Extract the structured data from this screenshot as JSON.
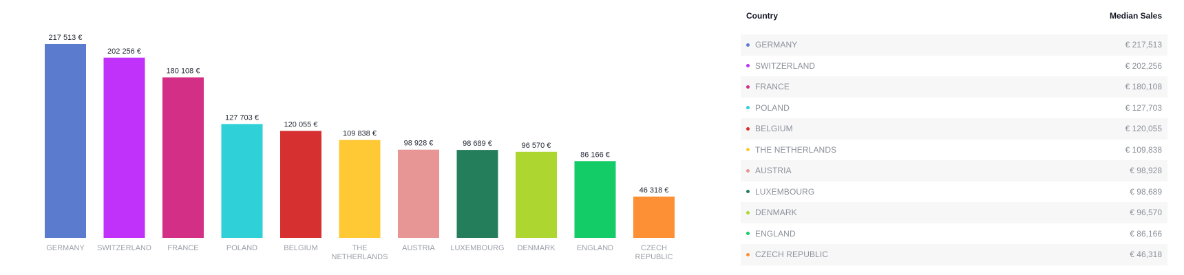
{
  "chart_data": {
    "type": "bar",
    "categories": [
      "GERMANY",
      "SWITZERLAND",
      "FRANCE",
      "POLAND",
      "BELGIUM",
      "THE NETHERLANDS",
      "AUSTRIA",
      "LUXEMBOURG",
      "DENMARK",
      "ENGLAND",
      "CZECH REPUBLIC"
    ],
    "category_lines": [
      [
        "GERMANY"
      ],
      [
        "SWITZERLAND"
      ],
      [
        "FRANCE"
      ],
      [
        "POLAND"
      ],
      [
        "BELGIUM"
      ],
      [
        "THE",
        "NETHERLANDS"
      ],
      [
        "AUSTRIA"
      ],
      [
        "LUXEMBOURG"
      ],
      [
        "DENMARK"
      ],
      [
        "ENGLAND"
      ],
      [
        "CZECH",
        "REPUBLIC"
      ]
    ],
    "values": [
      217513,
      202256,
      180108,
      127703,
      120055,
      109838,
      98928,
      98689,
      96570,
      86166,
      46318
    ],
    "value_labels": [
      "217 513 €",
      "202 256 €",
      "180 108 €",
      "127 703 €",
      "120 055 €",
      "109 838 €",
      "98 928 €",
      "98 689 €",
      "96 570 €",
      "86 166 €",
      "46 318 €"
    ],
    "colors": [
      "#5b7bcf",
      "#c032fa",
      "#d42f86",
      "#30d0d8",
      "#d63031",
      "#fec935",
      "#e89596",
      "#257e5b",
      "#add630",
      "#14cc67",
      "#fd9035"
    ],
    "ylim": [
      0,
      217513
    ],
    "grid": false,
    "legend": "none",
    "title": "",
    "xlabel": "",
    "ylabel": ""
  },
  "table": {
    "header_country": "Country",
    "header_sales": "Median Sales",
    "rows": [
      {
        "country": "GERMANY",
        "value": "€ 217,513",
        "color": "#5b7bcf"
      },
      {
        "country": "SWITZERLAND",
        "value": "€ 202,256",
        "color": "#c032fa"
      },
      {
        "country": "FRANCE",
        "value": "€ 180,108",
        "color": "#d42f86"
      },
      {
        "country": "POLAND",
        "value": "€ 127,703",
        "color": "#30d0d8"
      },
      {
        "country": "BELGIUM",
        "value": "€ 120,055",
        "color": "#d63031"
      },
      {
        "country": "THE NETHERLANDS",
        "value": "€ 109,838",
        "color": "#fec935"
      },
      {
        "country": "AUSTRIA",
        "value": "€ 98,928",
        "color": "#e89596"
      },
      {
        "country": "LUXEMBOURG",
        "value": "€ 98,689",
        "color": "#257e5b"
      },
      {
        "country": "DENMARK",
        "value": "€ 96,570",
        "color": "#add630"
      },
      {
        "country": "ENGLAND",
        "value": "€ 86,166",
        "color": "#14cc67"
      },
      {
        "country": "CZECH REPUBLIC",
        "value": "€ 46,318",
        "color": "#fd9035"
      }
    ]
  }
}
